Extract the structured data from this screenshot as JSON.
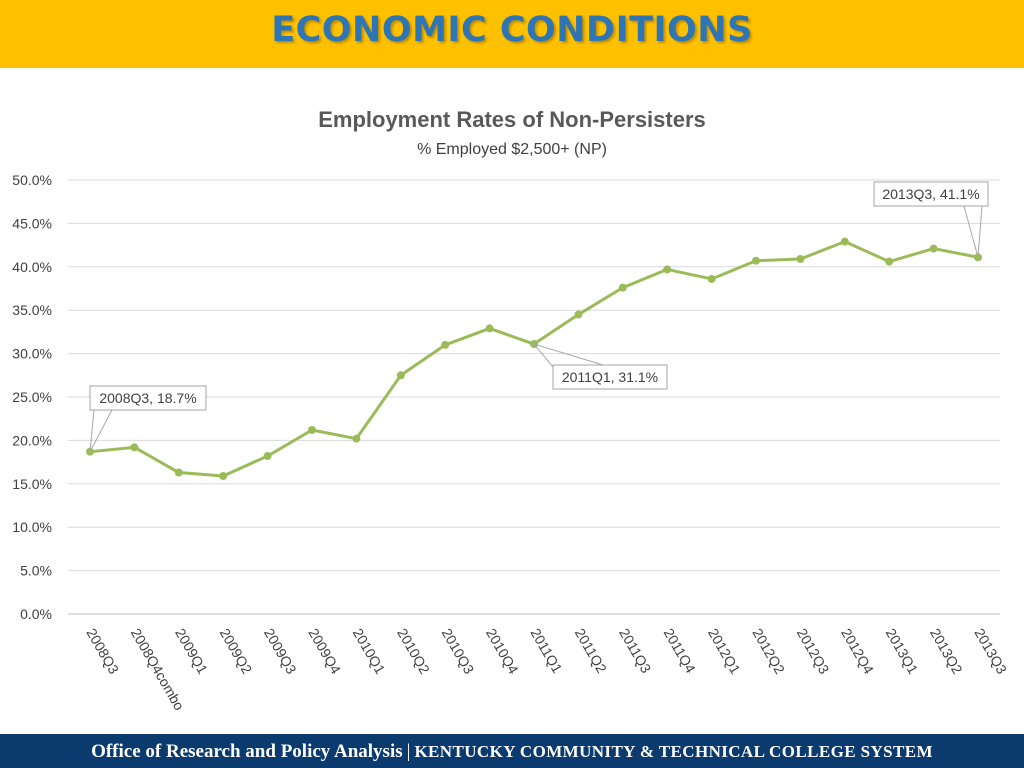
{
  "header": {
    "title": "ECONOMIC CONDITIONS"
  },
  "footer": {
    "left": "Office of Research and Policy Analysis",
    "separator": "|",
    "right": "KENTUCKY COMMUNITY & TECHNICAL COLLEGE SYSTEM"
  },
  "colors": {
    "banner": "#ffc000",
    "title": "#2e75b6",
    "footer": "#0b3a6e",
    "series": "#9bbb59"
  },
  "chart_data": {
    "type": "line",
    "title": "Employment Rates of Non-Persisters",
    "subtitle": "% Employed $2,500+ (NP)",
    "categories": [
      "2008Q3",
      "2008Q4combo",
      "2009Q1",
      "2009Q2",
      "2009Q3",
      "2009Q4",
      "2010Q1",
      "2010Q2",
      "2010Q3",
      "2010Q4",
      "2011Q1",
      "2011Q2",
      "2011Q3",
      "2011Q4",
      "2012Q1",
      "2012Q2",
      "2012Q3",
      "2012Q4",
      "2013Q1",
      "2013Q2",
      "2013Q3"
    ],
    "series": [
      {
        "values": [
          18.7,
          19.2,
          16.3,
          15.9,
          18.2,
          21.2,
          20.2,
          27.5,
          31.0,
          32.9,
          31.1,
          34.5,
          37.6,
          39.7,
          38.6,
          40.7,
          40.9,
          42.9,
          40.6,
          42.1,
          41.1
        ]
      }
    ],
    "ylim": [
      0,
      50
    ],
    "yticks": [
      "0.0%",
      "5.0%",
      "10.0%",
      "15.0%",
      "20.0%",
      "25.0%",
      "30.0%",
      "35.0%",
      "40.0%",
      "45.0%",
      "50.0%"
    ],
    "grid": true,
    "annotations": [
      {
        "index": 0,
        "label": "2008Q3, 18.7%"
      },
      {
        "index": 10,
        "label": "2011Q1, 31.1%"
      },
      {
        "index": 20,
        "label": "2013Q3, 41.1%"
      }
    ]
  }
}
